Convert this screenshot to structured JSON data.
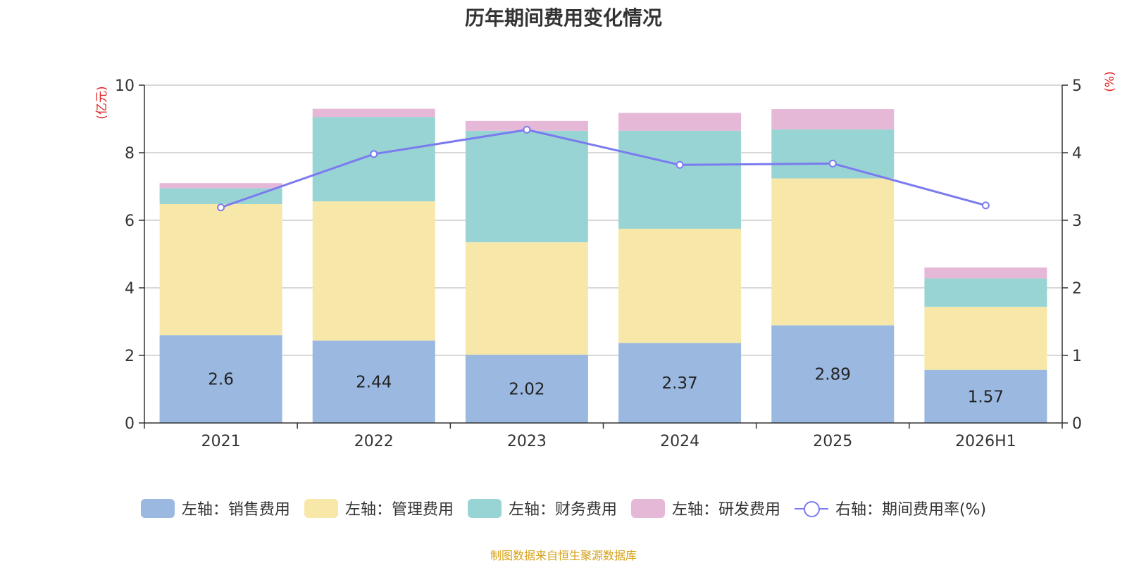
{
  "title": "历年期间费用变化情况",
  "source": "制图数据来自恒生聚源数据库",
  "colors": {
    "sales": "#9bb8e1",
    "admin": "#f7e8a9",
    "finance": "#98d4d4",
    "rd": "#e6b8d7",
    "line": "#7b7bef",
    "unit": "#e02020"
  },
  "legend": [
    {
      "label": "左轴：销售费用",
      "type": "bar"
    },
    {
      "label": "左轴：管理费用",
      "type": "bar"
    },
    {
      "label": "左轴：财务费用",
      "type": "bar"
    },
    {
      "label": "左轴：研发费用",
      "type": "bar"
    },
    {
      "label": "右轴：期间费用率(%)",
      "type": "line"
    }
  ],
  "chart_data": {
    "type": "bar",
    "stacked": true,
    "categories": [
      "2021",
      "2022",
      "2023",
      "2024",
      "2025",
      "2026H1"
    ],
    "series": [
      {
        "name": "左轴：销售费用",
        "values": [
          2.6,
          2.44,
          2.02,
          2.37,
          2.89,
          1.57
        ],
        "axis": "left",
        "labels": [
          "2.6",
          "2.44",
          "2.02",
          "2.37",
          "2.89",
          "1.57"
        ]
      },
      {
        "name": "左轴：管理费用",
        "values": [
          3.88,
          4.12,
          3.33,
          3.38,
          4.35,
          1.87
        ],
        "axis": "left"
      },
      {
        "name": "左轴：财务费用",
        "values": [
          0.47,
          2.5,
          3.3,
          2.9,
          1.45,
          0.84
        ],
        "axis": "left"
      },
      {
        "name": "左轴：研发费用",
        "values": [
          0.15,
          0.24,
          0.29,
          0.53,
          0.6,
          0.32
        ],
        "axis": "left"
      }
    ],
    "line": {
      "name": "右轴：期间费用率(%)",
      "values": [
        3.19,
        3.98,
        4.34,
        3.82,
        3.84,
        3.22
      ],
      "axis": "right"
    },
    "left_axis": {
      "unit": "(亿元)",
      "min": 0,
      "max": 10,
      "ticks": [
        0,
        2,
        4,
        6,
        8,
        10
      ]
    },
    "right_axis": {
      "unit": "(%)",
      "min": 0,
      "max": 5,
      "ticks": [
        0,
        1,
        2,
        3,
        4,
        5
      ]
    },
    "grid": true,
    "legend_position": "bottom"
  }
}
